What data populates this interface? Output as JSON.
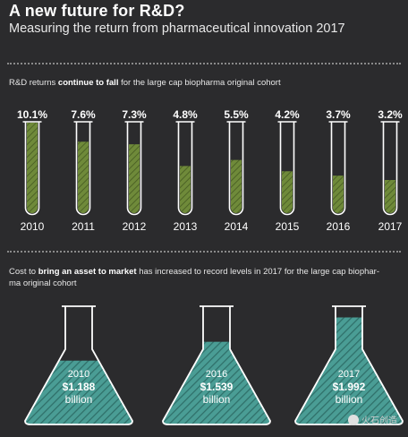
{
  "header": {
    "title": "A new future for R&D?",
    "subtitle": "Measuring the return from pharmaceutical innovation 2017"
  },
  "section1": {
    "text_a": "R&D returns ",
    "text_b": "continue to fall",
    "text_c": " for the large cap biopharma original cohort"
  },
  "section2": {
    "text_a": "Cost to ",
    "text_b": "bring an asset to market",
    "text_c": " has increased to record levels in 2017 for the large cap biophar-",
    "text_d": "ma original cohort"
  },
  "colors": {
    "background": "#2b2b2d",
    "tube_fill": "#6f8a3a",
    "flask_fill": "#4a9d95",
    "outline": "#ffffff"
  },
  "chart_data": [
    {
      "type": "bar",
      "categories": [
        "2010",
        "2011",
        "2012",
        "2013",
        "2014",
        "2015",
        "2016",
        "2017"
      ],
      "values": [
        10.1,
        7.6,
        7.3,
        4.8,
        5.5,
        4.2,
        3.7,
        3.2
      ],
      "value_labels": [
        "10.1%",
        "7.6%",
        "7.3%",
        "4.8%",
        "5.5%",
        "4.2%",
        "3.7%",
        "3.2%"
      ],
      "ylim": [
        0,
        10.1
      ]
    },
    {
      "type": "bar",
      "categories": [
        "2010",
        "2016",
        "2017"
      ],
      "values": [
        1.188,
        1.539,
        1.992
      ],
      "value_labels": [
        "$1.188",
        "$1.539",
        "$1.992"
      ],
      "unit": "billion",
      "ylim": [
        0,
        2.2
      ]
    }
  ]
}
